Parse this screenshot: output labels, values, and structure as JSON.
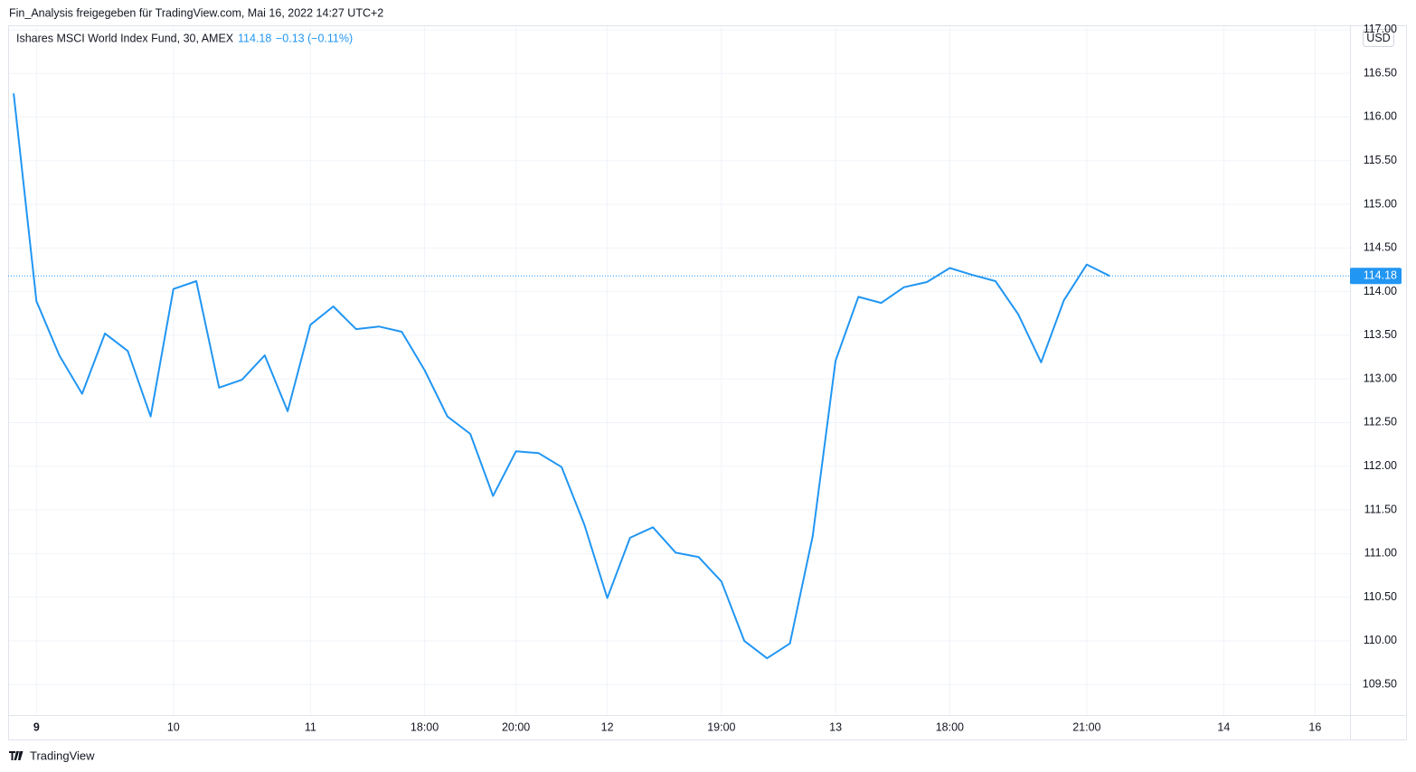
{
  "header": "Fin_Analysis freigegeben für TradingView.com, Mai 16, 2022 14:27 UTC+2",
  "footer": "TradingView",
  "chart_data": {
    "type": "line",
    "title": "Ishares MSCI World Index Fund, 30, AMEX",
    "last": 114.18,
    "change": "−0.13",
    "change_pct": "(−0.11%)",
    "currency": "USD",
    "series": [
      {
        "name": "Ishares MSCI World Index Fund",
        "color": "#2196f3",
        "values": [
          116.27,
          113.89,
          113.27,
          112.83,
          113.52,
          113.32,
          112.57,
          114.03,
          114.12,
          112.9,
          112.99,
          113.27,
          112.63,
          113.62,
          113.83,
          113.57,
          113.6,
          113.54,
          113.1,
          112.57,
          112.37,
          111.66,
          112.17,
          112.15,
          111.99,
          111.33,
          110.49,
          111.18,
          111.3,
          111.01,
          110.96,
          110.68,
          110.0,
          109.8,
          109.97,
          111.2,
          113.21,
          113.94,
          113.87,
          114.05,
          114.11,
          114.27,
          114.19,
          114.12,
          113.74,
          113.19,
          113.9,
          114.31,
          114.18
        ]
      }
    ],
    "xlim": [
      -0.24,
      58.53
    ],
    "xticks": [
      {
        "value": 1,
        "label": "9"
      },
      {
        "value": 7,
        "label": "10"
      },
      {
        "value": 13,
        "label": "11"
      },
      {
        "value": 18,
        "label": "18:00"
      },
      {
        "value": 22,
        "label": "20:00"
      },
      {
        "value": 26,
        "label": "12"
      },
      {
        "value": 31,
        "label": "19:00"
      },
      {
        "value": 36,
        "label": "13"
      },
      {
        "value": 41,
        "label": "18:00"
      },
      {
        "value": 47,
        "label": "21:00"
      },
      {
        "value": 53,
        "label": "14"
      },
      {
        "value": 57,
        "label": "16"
      }
    ],
    "ylim": [
      109.15,
      117.05
    ],
    "yticks": [
      {
        "value": 109.5,
        "label": "109.50"
      },
      {
        "value": 110,
        "label": "110.00"
      },
      {
        "value": 110.5,
        "label": "110.50"
      },
      {
        "value": 111,
        "label": "111.00"
      },
      {
        "value": 111.5,
        "label": "111.50"
      },
      {
        "value": 112,
        "label": "112.00"
      },
      {
        "value": 112.5,
        "label": "112.50"
      },
      {
        "value": 113,
        "label": "113.00"
      },
      {
        "value": 113.5,
        "label": "113.50"
      },
      {
        "value": 114,
        "label": "114.00"
      },
      {
        "value": 114.5,
        "label": "114.50"
      },
      {
        "value": 115,
        "label": "115.00"
      },
      {
        "value": 115.5,
        "label": "115.50"
      },
      {
        "value": 116,
        "label": "116.00"
      },
      {
        "value": 116.5,
        "label": "116.50"
      },
      {
        "value": 117,
        "label": "117.00"
      }
    ],
    "grid": true
  }
}
